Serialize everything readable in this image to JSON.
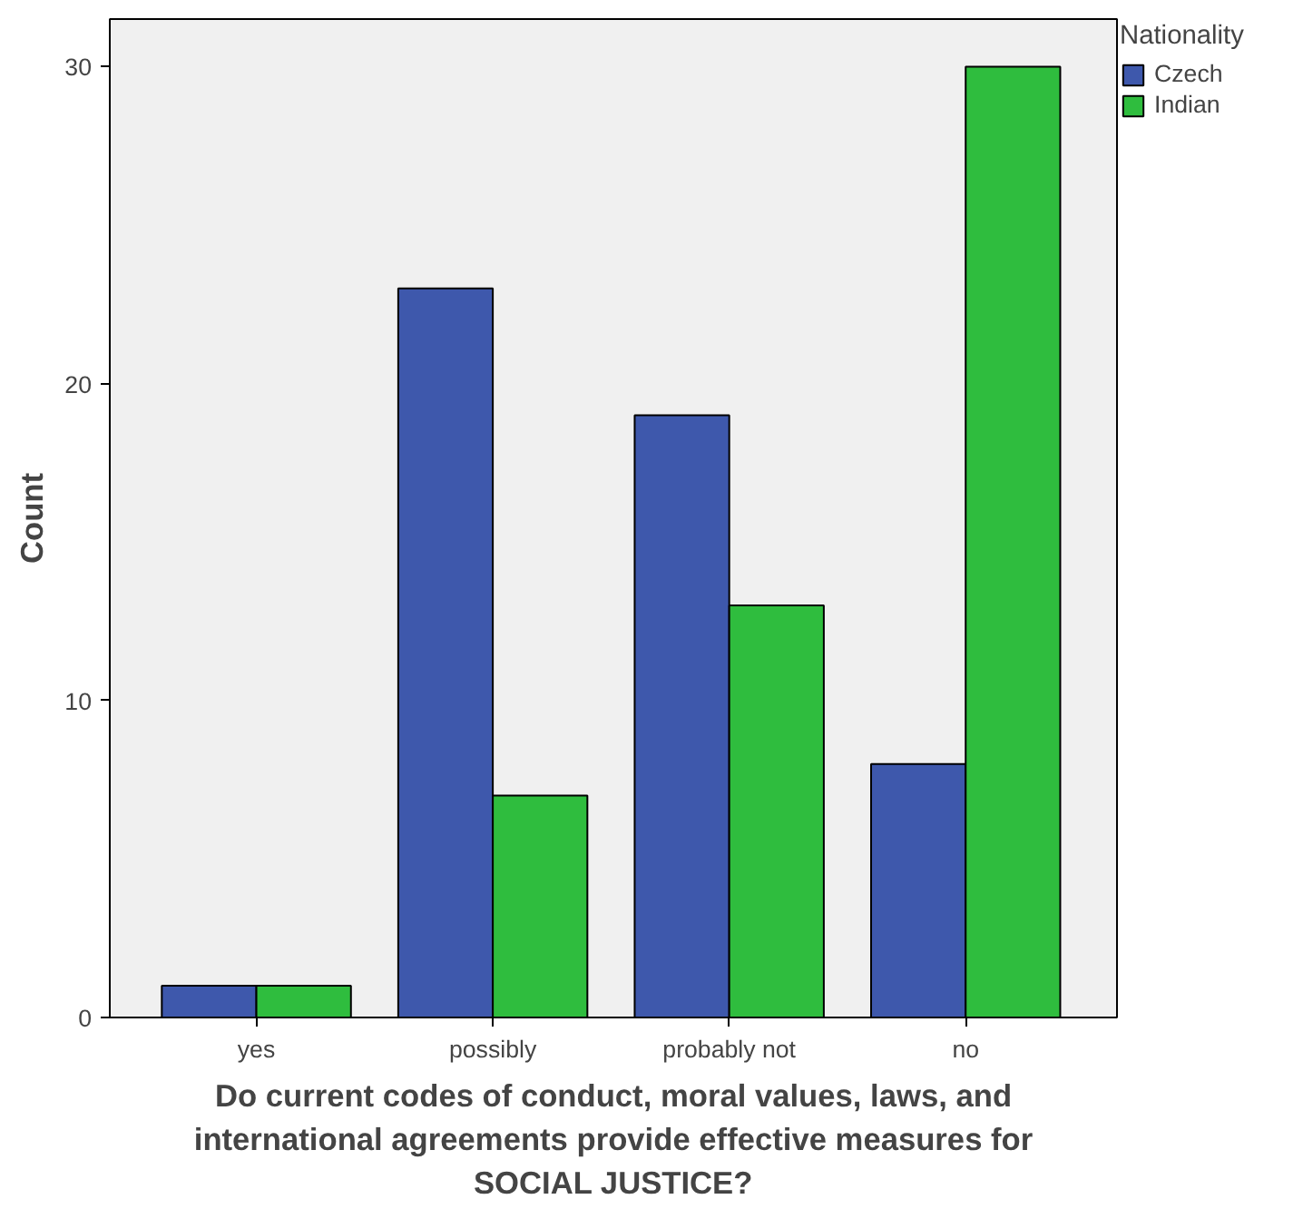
{
  "chart_data": {
    "type": "bar",
    "xlabel": "Do current codes of conduct, moral values, laws, and international agreements provide effective measures for SOCIAL JUSTICE?",
    "ylabel": "Count",
    "legend_title": "Nationality",
    "categories": [
      "yes",
      "possibly",
      "probably not",
      "no"
    ],
    "series": [
      {
        "name": "Czech",
        "color": "#3e58ac",
        "values": [
          1,
          23,
          19,
          8
        ]
      },
      {
        "name": "Indian",
        "color": "#2fbd3e",
        "values": [
          1,
          7,
          13,
          30
        ]
      }
    ],
    "ylim": [
      0,
      31.5
    ],
    "yticks": [
      0,
      10,
      20,
      30
    ],
    "grid": false,
    "legend": "top right"
  }
}
